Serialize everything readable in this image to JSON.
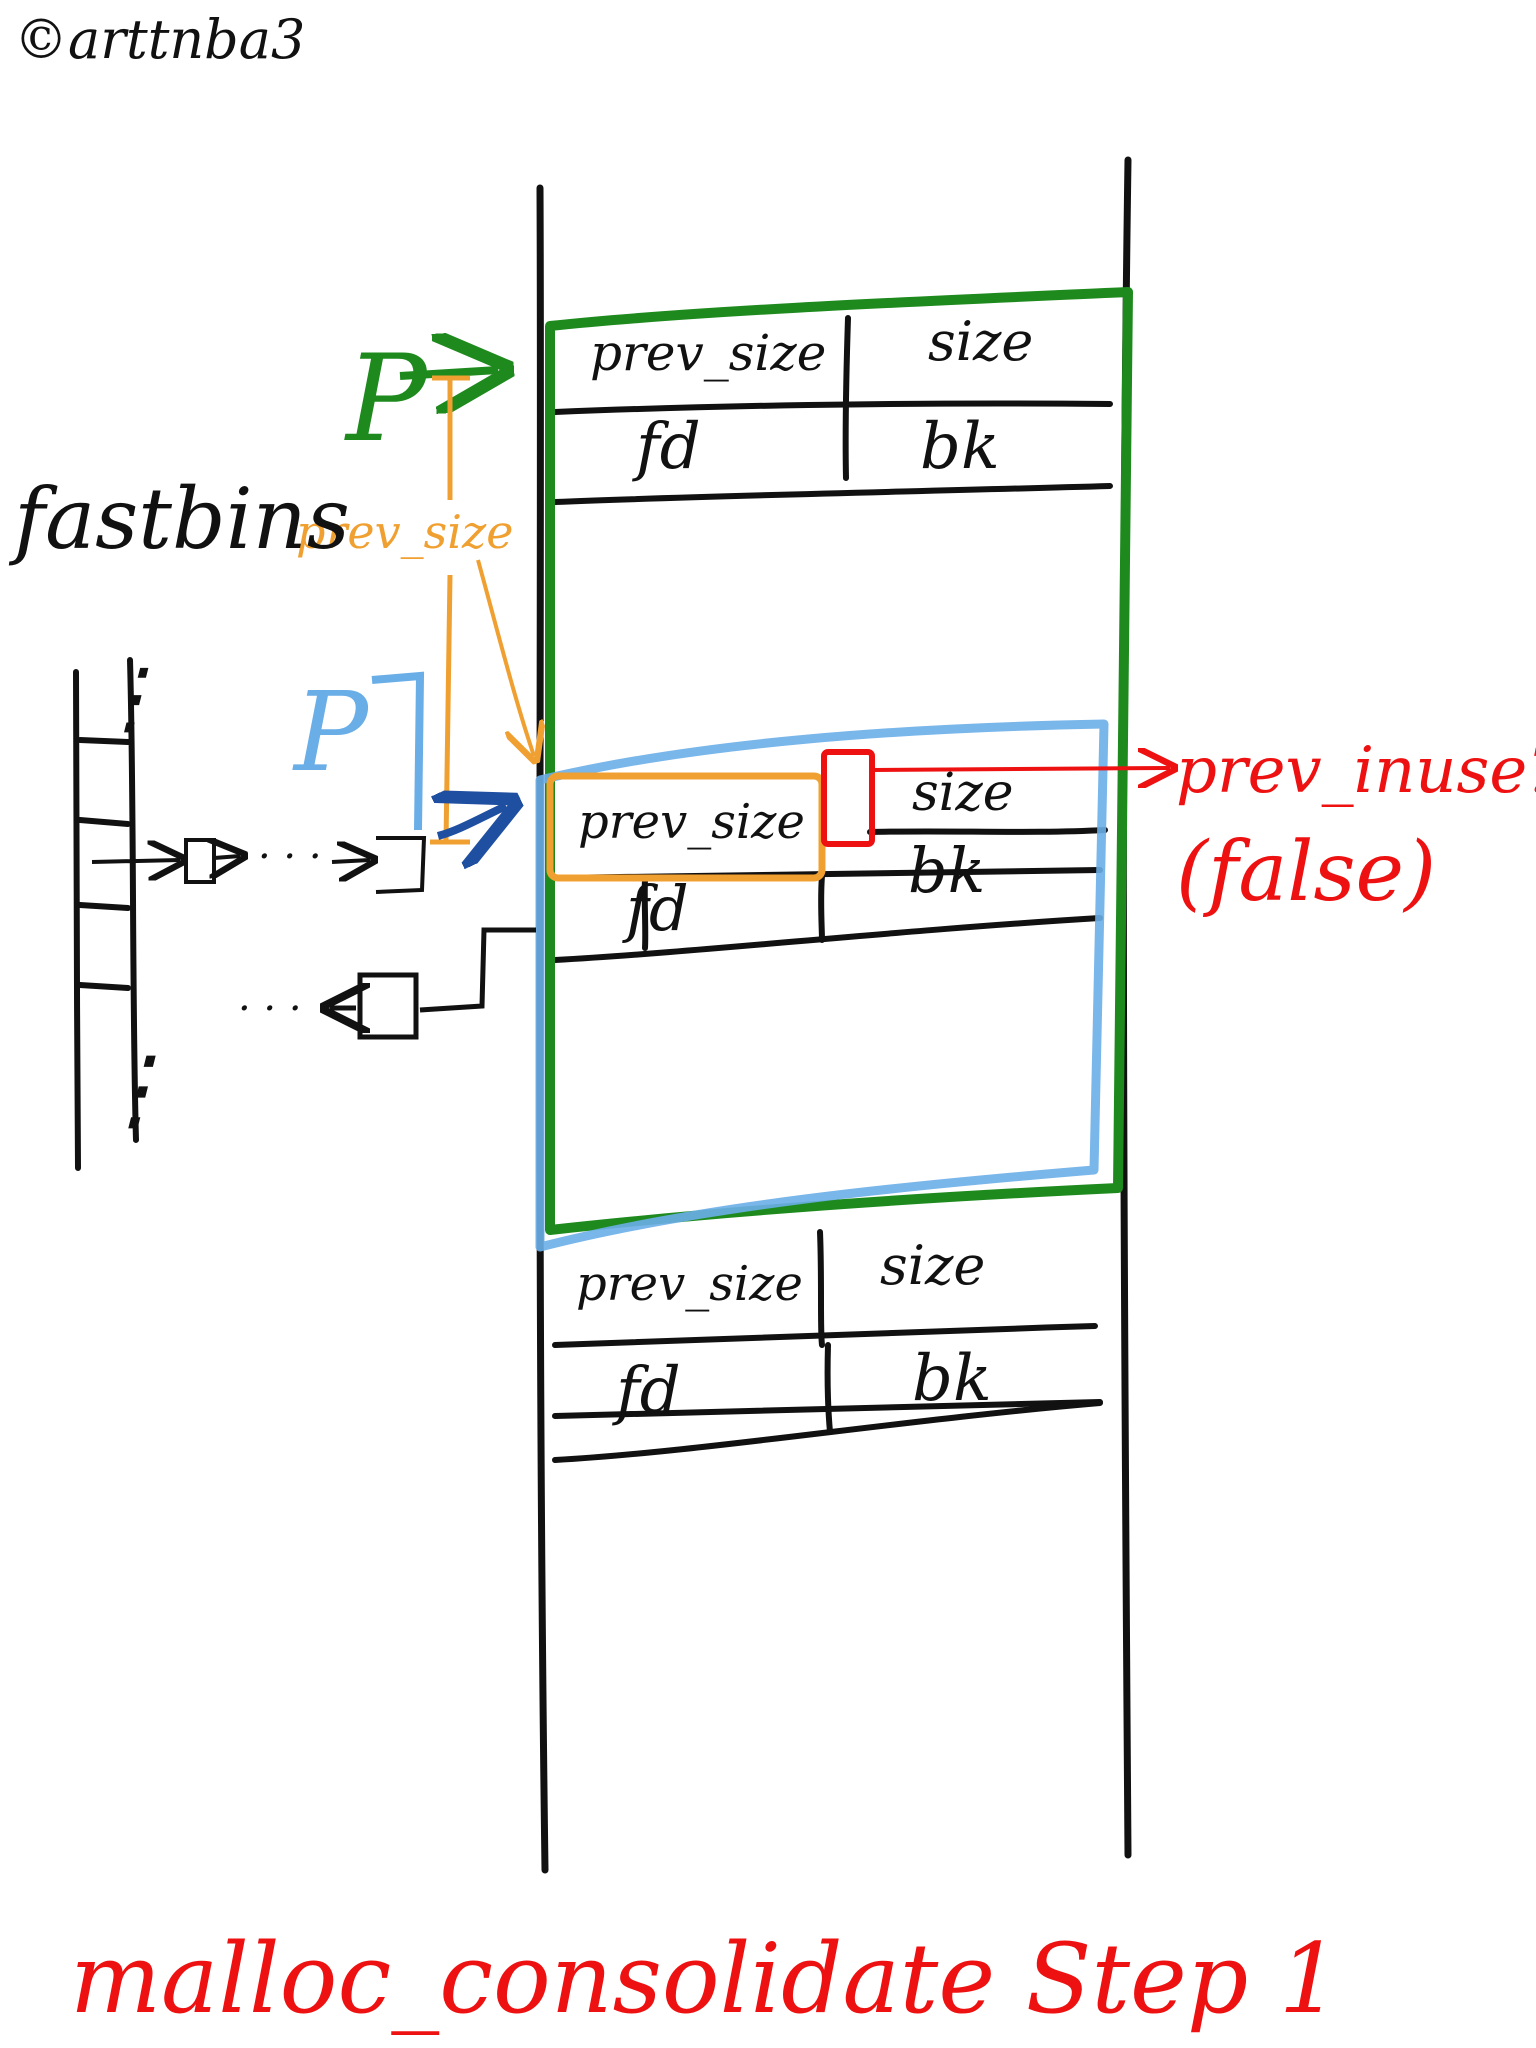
{
  "watermark": "©arttnba3",
  "title": "malloc_consolidate Step 1",
  "colors": {
    "ink": "#111111",
    "green": "#1e8a1e",
    "blue": "#6aaee8",
    "dark_blue": "#1f4fa0",
    "orange": "#f0a030",
    "red": "#ee1111"
  },
  "fastbins": {
    "label": "fastbins",
    "row_dots": "⋮",
    "chain_dots": "· · ·",
    "back_dots": "· · ·"
  },
  "pointers": {
    "green_p": "P",
    "blue_p": "P",
    "prev_size_annotation": "prev_size"
  },
  "chunks": [
    {
      "prev_size": "prev_size",
      "size": "size",
      "fd": "fd",
      "bk": "bk"
    },
    {
      "prev_size": "prev_size",
      "size": "size",
      "fd": "fd",
      "bk": "bk"
    },
    {
      "prev_size": "prev_size",
      "size": "size",
      "fd": "fd",
      "bk": "bk"
    }
  ],
  "prev_inuse": {
    "label": "prev_inuse?",
    "value": "(false)"
  }
}
